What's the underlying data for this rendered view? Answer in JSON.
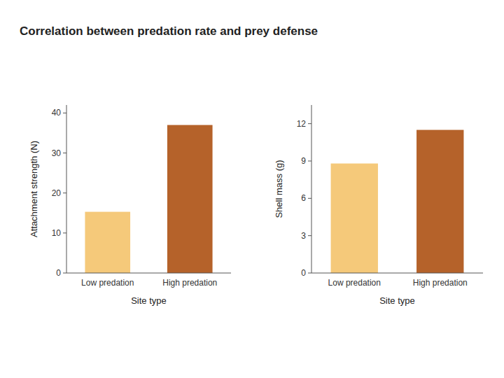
{
  "title": "Correlation between predation rate and prey defense",
  "chart_data": [
    {
      "type": "bar",
      "ylabel": "Attachment strength (N)",
      "xlabel": "Site type",
      "categories": [
        "Low predation",
        "High predation"
      ],
      "values": [
        15.3,
        37.0
      ],
      "colors": [
        "#F5C97A",
        "#B5622A"
      ],
      "ylim": [
        0,
        42
      ],
      "yticks": [
        0,
        10,
        20,
        30,
        40
      ],
      "grid": false
    },
    {
      "type": "bar",
      "ylabel": "Shell mass (g)",
      "xlabel": "Site type",
      "categories": [
        "Low predation",
        "High predation"
      ],
      "values": [
        8.8,
        11.5
      ],
      "colors": [
        "#F5C97A",
        "#B5622A"
      ],
      "ylim": [
        0,
        13.5
      ],
      "yticks": [
        0,
        3,
        6,
        9,
        12
      ],
      "grid": false
    }
  ]
}
